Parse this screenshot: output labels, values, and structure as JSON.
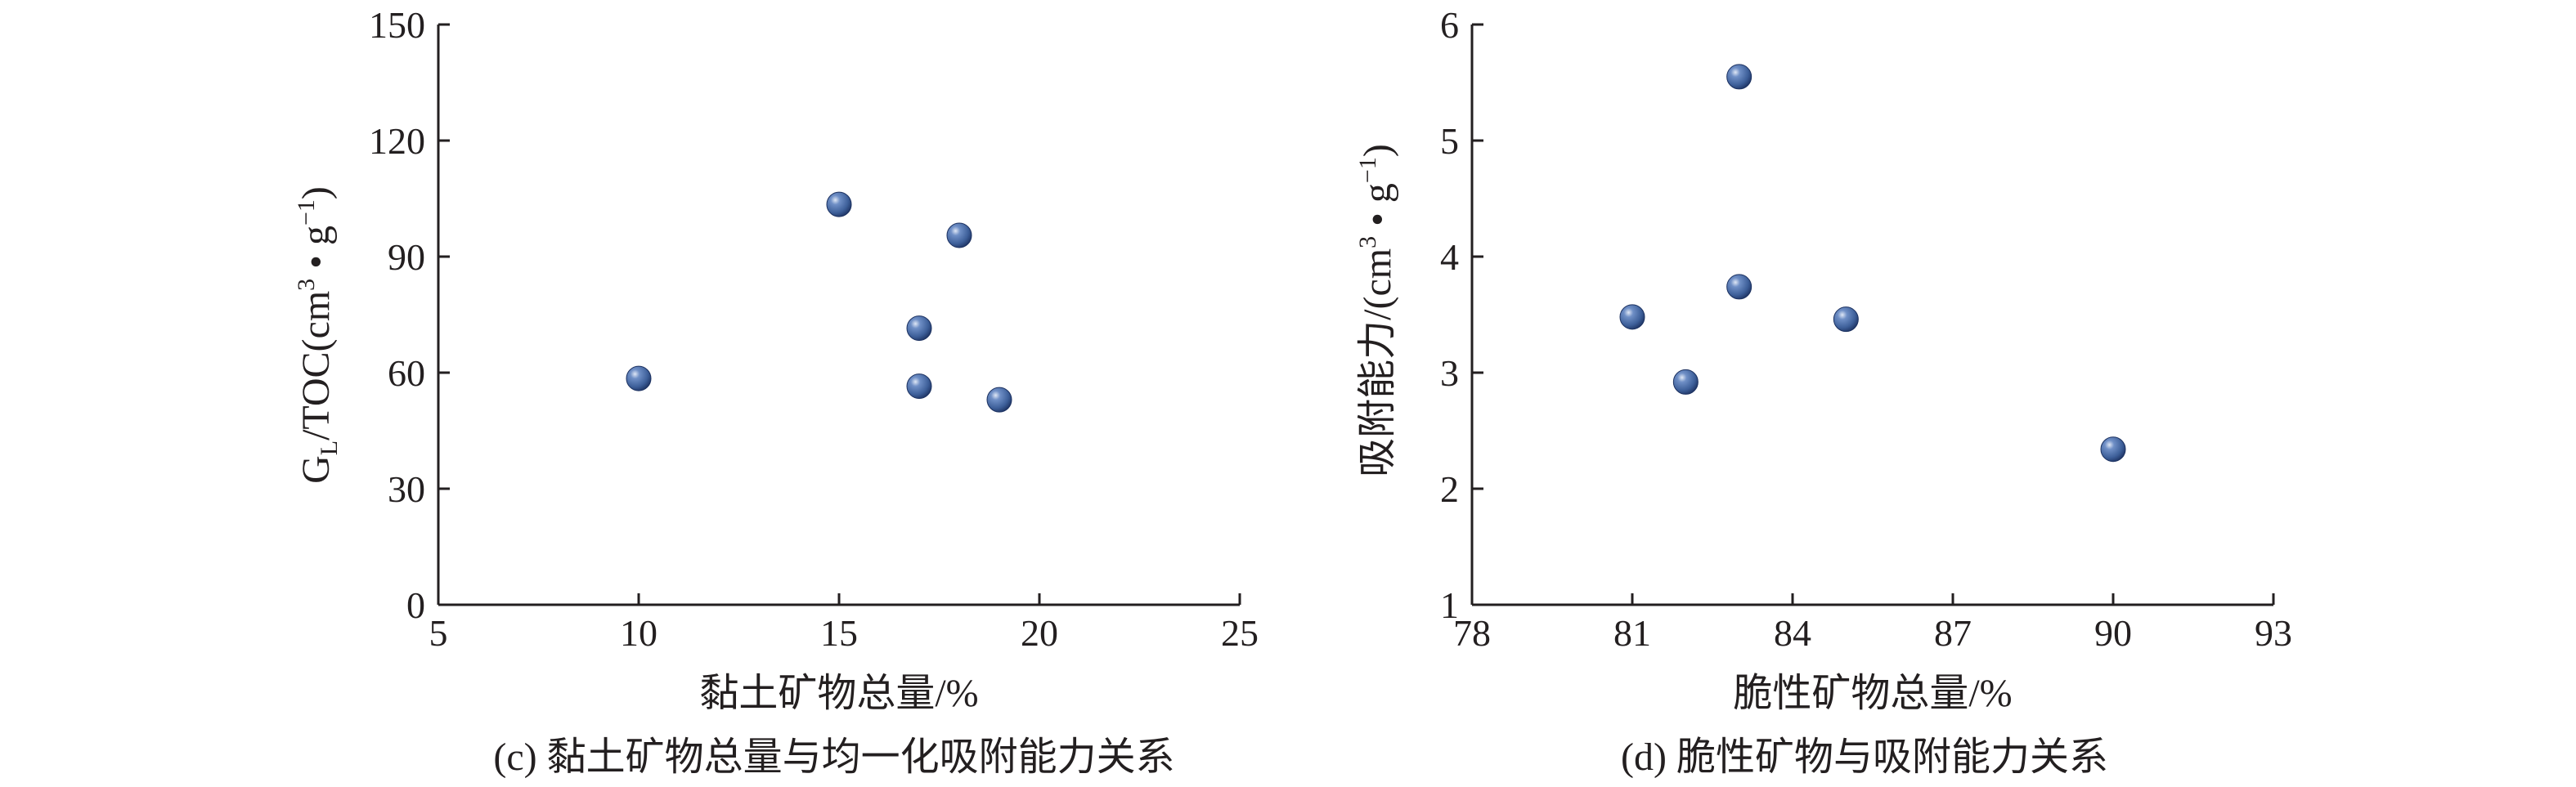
{
  "colors": {
    "marker": "#3d5f99",
    "marker_highlight": "#c7d3ea",
    "marker_dark": "#1c3160",
    "axis": "#231f20"
  },
  "chart_data": [
    {
      "id": "c",
      "type": "scatter",
      "caption": "(c) 黏土矿物总量与均一化吸附能力关系",
      "xlabel": "黏土矿物总量/%",
      "ylabel": "G_L/TOC(cm³ • g⁻¹)",
      "ylabel_parts": {
        "g": "G",
        "sub": "L",
        "mid": "/TOC(cm",
        "sup3": "3",
        "dot": " • g",
        "supm1": "−1",
        "end": ")"
      },
      "xlim": [
        5,
        25
      ],
      "ylim": [
        0,
        150
      ],
      "xticks": [
        5,
        10,
        15,
        20,
        25
      ],
      "yticks": [
        0,
        30,
        60,
        90,
        120,
        150
      ],
      "grid": false,
      "series": [
        {
          "x": [
            10,
            15,
            17,
            17,
            18,
            19
          ],
          "y": [
            58.5,
            103.5,
            71.5,
            56.5,
            95.5,
            53
          ]
        }
      ]
    },
    {
      "id": "d",
      "type": "scatter",
      "caption": "(d) 脆性矿物与吸附能力关系",
      "xlabel": "脆性矿物总量/%",
      "ylabel": "吸附能力/(cm³ • g⁻¹)",
      "ylabel_parts": {
        "pre": "吸附能力/(cm",
        "sup3": "3",
        "dot": " • g",
        "supm1": "−1",
        "end": ")"
      },
      "xlim": [
        78,
        93
      ],
      "ylim": [
        1,
        6
      ],
      "xticks": [
        78,
        81,
        84,
        87,
        90,
        93
      ],
      "yticks": [
        1,
        2,
        3,
        4,
        5,
        6
      ],
      "grid": false,
      "series": [
        {
          "x": [
            81,
            82,
            83,
            83,
            85,
            90
          ],
          "y": [
            3.48,
            2.92,
            5.55,
            3.74,
            3.46,
            2.34
          ]
        }
      ]
    }
  ]
}
